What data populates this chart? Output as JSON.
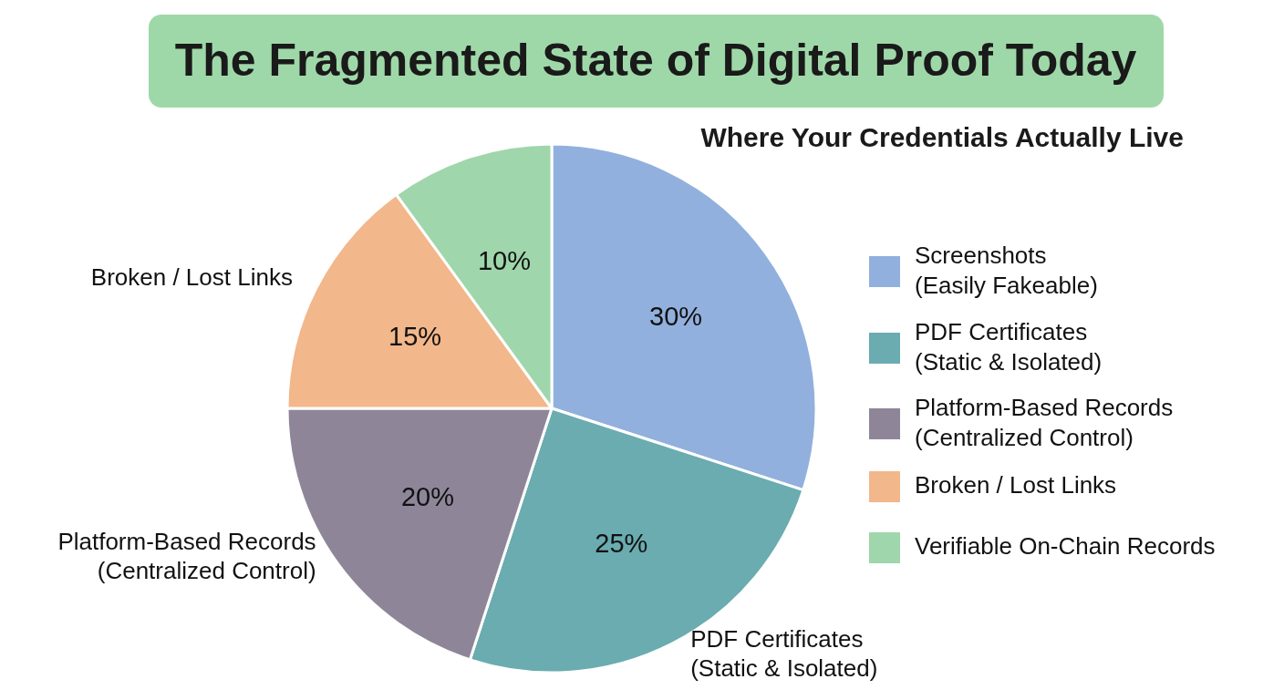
{
  "chart_data": {
    "type": "pie",
    "title": "The Fragmented State of Digital Proof Today",
    "subtitle": "Where Your Credentials Actually Live",
    "categories": [
      "Screenshots\n(Easily Fakeable)",
      "PDF Certificates\n(Static & Isolated)",
      "Platform-Based Records\n(Centralized Control)",
      "Broken / Lost Links",
      "Verifiable On-Chain Records"
    ],
    "values": [
      30,
      25,
      20,
      15,
      10
    ],
    "value_labels": [
      "30%",
      "25%",
      "20%",
      "15%",
      "10%"
    ],
    "colors": [
      "#92b0dd",
      "#6aacb0",
      "#8e8698",
      "#f2b78a",
      "#9fd6ab"
    ],
    "annotations": [
      {
        "text": "PDF Certificates\n(Static & Isolated)",
        "x": "PDF Certificates\n(Static & Isolated)"
      },
      {
        "text": "Platform-Based Records\n(Centralized Control)",
        "x": "Platform-Based Records\n(Centralized Control)"
      },
      {
        "text": "Broken / Lost Links",
        "x": "Broken / Lost Links"
      }
    ],
    "legend": "right"
  }
}
